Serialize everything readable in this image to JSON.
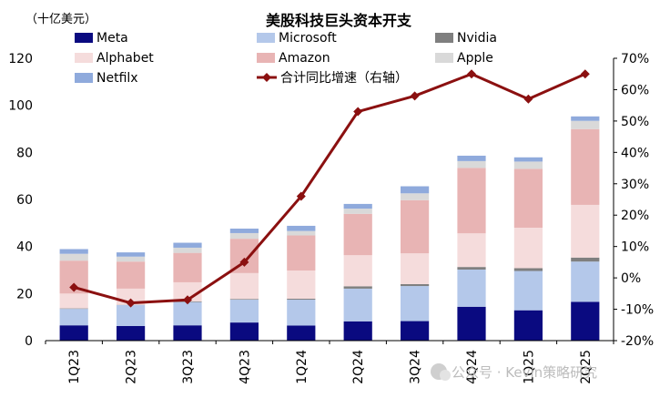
{
  "chart_data": {
    "type": "bar",
    "title": "美股科技巨头资本开支",
    "ylabel": "（十亿美元）",
    "categories": [
      "1Q23",
      "2Q23",
      "3Q23",
      "4Q23",
      "1Q24",
      "2Q24",
      "3Q24",
      "4Q24",
      "1Q25",
      "2Q25"
    ],
    "ylim": [
      0,
      120
    ],
    "y_ticks": [
      "0",
      "20",
      "40",
      "60",
      "80",
      "100",
      "120"
    ],
    "y2lim": [
      -20,
      70
    ],
    "y2_ticks": [
      "-20%",
      "-10%",
      "0%",
      "10%",
      "20%",
      "30%",
      "40%",
      "50%",
      "60%",
      "70%"
    ],
    "legend_position": "top",
    "series": [
      {
        "name": "Meta",
        "color": "#0a0a80",
        "values": [
          6.5,
          6.2,
          6.5,
          7.7,
          6.4,
          8.2,
          8.3,
          14.4,
          12.9,
          16.5
        ]
      },
      {
        "name": "Microsoft",
        "color": "#b4c8ea",
        "values": [
          7.0,
          8.9,
          9.9,
          9.7,
          11.0,
          13.9,
          14.9,
          15.8,
          16.7,
          17.1
        ]
      },
      {
        "name": "Nvidia",
        "color": "#7f7f7f",
        "values": [
          0.2,
          0.1,
          0.3,
          0.3,
          0.4,
          1.0,
          0.8,
          1.1,
          1.2,
          1.7
        ]
      },
      {
        "name": "Alphabet",
        "color": "#f5dcdc",
        "values": [
          6.3,
          6.9,
          8.1,
          11.0,
          12.0,
          13.2,
          13.1,
          14.3,
          17.2,
          22.4
        ]
      },
      {
        "name": "Amazon",
        "color": "#e8b4b4",
        "values": [
          14.0,
          11.5,
          12.5,
          14.6,
          14.9,
          17.6,
          22.6,
          27.8,
          25.0,
          32.2
        ]
      },
      {
        "name": "Apple",
        "color": "#d9d9d9",
        "values": [
          2.9,
          2.1,
          2.2,
          2.4,
          1.9,
          2.2,
          2.9,
          2.9,
          3.1,
          3.5
        ]
      },
      {
        "name": "Netfilx",
        "color": "#8faadc",
        "values": [
          2.0,
          1.8,
          2.1,
          1.9,
          2.2,
          2.0,
          3.0,
          2.3,
          1.8,
          1.9
        ]
      }
    ],
    "line": {
      "name": "合计同比增速（右轴）",
      "color": "#8b1010",
      "values": [
        -3,
        -8,
        -7,
        5,
        26,
        53,
        58,
        65,
        57,
        65
      ]
    },
    "watermark": "公众号 · Kevin策略研究"
  }
}
